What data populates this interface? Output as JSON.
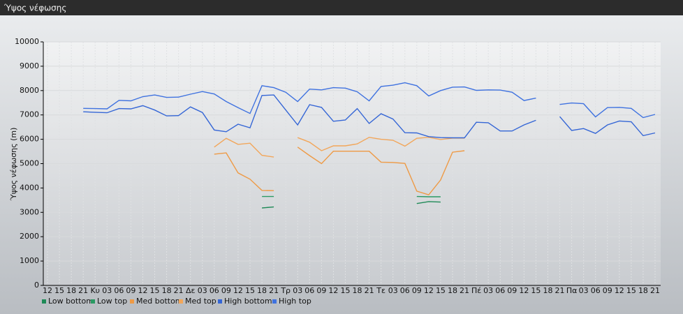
{
  "window_title": "Ύψος νέφωσης",
  "chart_data": {
    "type": "line",
    "y_label": "Ύψος νέφωσης (m)",
    "categories": [
      "12",
      "15",
      "18",
      "21",
      "Κυ",
      "03",
      "06",
      "09",
      "12",
      "15",
      "18",
      "21",
      "Δε",
      "03",
      "06",
      "09",
      "12",
      "15",
      "18",
      "21",
      "Τρ",
      "03",
      "06",
      "09",
      "12",
      "15",
      "18",
      "21",
      "Τε",
      "03",
      "06",
      "09",
      "12",
      "15",
      "18",
      "21",
      "Πέ",
      "03",
      "06",
      "09",
      "12",
      "15",
      "18",
      "21",
      "Πα",
      "03",
      "06",
      "09",
      "12",
      "15",
      "18",
      "21"
    ],
    "ylim": [
      0,
      10000
    ],
    "yticks": [
      0,
      1000,
      2000,
      3000,
      4000,
      5000,
      6000,
      7000,
      8000,
      9000,
      10000
    ],
    "grid": true,
    "legend": "bottom",
    "series": [
      {
        "name": "Low bottom",
        "color": "#1f8a57",
        "values": [
          null,
          null,
          null,
          null,
          null,
          null,
          null,
          null,
          null,
          null,
          null,
          null,
          null,
          null,
          null,
          null,
          null,
          null,
          3180,
          3220,
          null,
          null,
          null,
          null,
          null,
          null,
          null,
          null,
          null,
          null,
          null,
          3360,
          3440,
          3420,
          null,
          null,
          null,
          null,
          null,
          null,
          null,
          null,
          null,
          null,
          null,
          null,
          null,
          null,
          null,
          null,
          null,
          null
        ]
      },
      {
        "name": "Low top",
        "color": "#2a9a63",
        "values": [
          null,
          null,
          null,
          null,
          null,
          null,
          null,
          null,
          null,
          null,
          null,
          null,
          null,
          null,
          null,
          null,
          null,
          null,
          3650,
          3650,
          null,
          null,
          null,
          null,
          null,
          null,
          null,
          null,
          null,
          null,
          null,
          3650,
          3640,
          3640,
          null,
          null,
          null,
          null,
          null,
          null,
          null,
          null,
          null,
          null,
          null,
          null,
          null,
          null,
          null,
          null,
          null,
          null
        ]
      },
      {
        "name": "Med bottom",
        "color": "#ee9a45",
        "values": [
          null,
          null,
          null,
          null,
          null,
          null,
          null,
          null,
          null,
          null,
          null,
          null,
          null,
          null,
          5390,
          5440,
          4620,
          4360,
          3900,
          3890,
          null,
          5680,
          5330,
          5000,
          5510,
          5510,
          5510,
          5510,
          5060,
          5050,
          5010,
          3870,
          3720,
          4330,
          5470,
          5530,
          null,
          null,
          null,
          null,
          null,
          null,
          null,
          null,
          null,
          null,
          null,
          null,
          null,
          null,
          null,
          null
        ]
      },
      {
        "name": "Med top",
        "color": "#f2a65a",
        "values": [
          null,
          null,
          null,
          null,
          null,
          null,
          null,
          null,
          null,
          null,
          null,
          null,
          null,
          null,
          5680,
          6040,
          5790,
          5840,
          5340,
          5270,
          null,
          6070,
          5880,
          5530,
          5730,
          5730,
          5810,
          6080,
          6000,
          5960,
          5720,
          6040,
          6080,
          5990,
          6050,
          6050,
          null,
          null,
          null,
          null,
          null,
          null,
          null,
          null,
          null,
          null,
          null,
          null,
          null,
          null,
          null,
          null
        ]
      },
      {
        "name": "High bottom",
        "color": "#3566d6",
        "values": [
          null,
          null,
          null,
          7130,
          7110,
          7090,
          7260,
          7250,
          7380,
          7200,
          6960,
          6970,
          7330,
          7100,
          6380,
          6310,
          6620,
          6470,
          7800,
          7820,
          7200,
          6590,
          7420,
          7310,
          6740,
          6790,
          7260,
          6650,
          7050,
          6830,
          6270,
          6260,
          6110,
          6070,
          6060,
          6060,
          6700,
          6680,
          6340,
          6340,
          6590,
          6780,
          null,
          6930,
          6360,
          6440,
          6240,
          6590,
          6750,
          6720,
          6150,
          6260
        ]
      },
      {
        "name": "High top",
        "color": "#3f72e0",
        "values": [
          null,
          null,
          null,
          7270,
          7260,
          7250,
          7600,
          7580,
          7750,
          7820,
          7720,
          7730,
          7850,
          7960,
          7860,
          7550,
          7300,
          7060,
          8200,
          8120,
          7930,
          7550,
          8060,
          8030,
          8120,
          8100,
          7950,
          7580,
          8170,
          8220,
          8320,
          8200,
          7780,
          8000,
          8140,
          8150,
          8010,
          8030,
          8020,
          7930,
          7590,
          7690,
          null,
          7430,
          7490,
          7460,
          6920,
          7300,
          7310,
          7270,
          6890,
          7020
        ]
      }
    ]
  }
}
